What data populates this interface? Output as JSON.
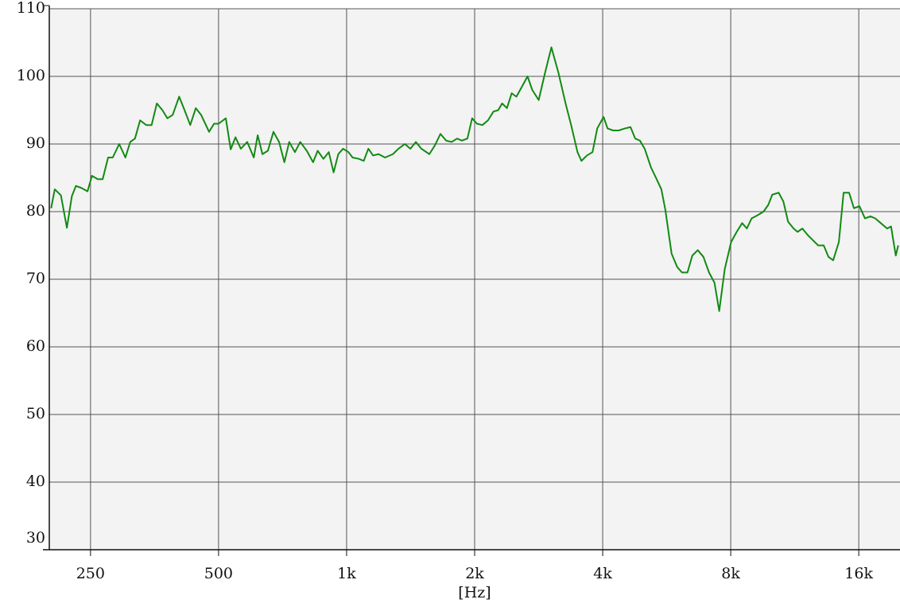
{
  "chart_data": {
    "type": "line",
    "x_label": "[Hz]",
    "log_x": true,
    "grid": true,
    "xlim": [
      200,
      20000
    ],
    "xticks": [
      250,
      500,
      {
        "value": 1000,
        "label": "1k"
      },
      {
        "value": 2000,
        "label": "2k"
      },
      {
        "value": 4000,
        "label": "4k"
      },
      {
        "value": 8000,
        "label": "8k"
      },
      {
        "value": 16000,
        "label": "16k"
      }
    ],
    "ylim": [
      30,
      110
    ],
    "yticks": [
      30,
      40,
      50,
      60,
      70,
      80,
      90,
      100,
      110
    ],
    "series": [
      {
        "color": "#128a12",
        "x": [
          202,
          206,
          213,
          220,
          226,
          231,
          238,
          246,
          252,
          260,
          267,
          275,
          282,
          292,
          302,
          310,
          318,
          327,
          338,
          348,
          358,
          369,
          379,
          390,
          404,
          416,
          429,
          442,
          455,
          475,
          488,
          500,
          520,
          534,
          548,
          564,
          584,
          605,
          618,
          634,
          653,
          673,
          694,
          714,
          733,
          756,
          778,
          806,
          834,
          855,
          882,
          908,
          932,
          956,
          981,
          1010,
          1033,
          1069,
          1097,
          1125,
          1154,
          1189,
          1231,
          1285,
          1324,
          1371,
          1412,
          1455,
          1499,
          1565,
          1613,
          1662,
          1714,
          1766,
          1819,
          1866,
          1923,
          1973,
          2025,
          2086,
          2150,
          2215,
          2272,
          2321,
          2382,
          2444,
          2507,
          2585,
          2663,
          2732,
          2829,
          2927,
          3030,
          3149,
          3272,
          3372,
          3490,
          3565,
          3673,
          3786,
          3884,
          4019,
          4107,
          4231,
          4362,
          4513,
          4650,
          4771,
          4894,
          5021,
          5198,
          5356,
          5495,
          5614,
          5808,
          5988,
          6144,
          6330,
          6497,
          6693,
          6901,
          7113,
          7325,
          7517,
          7745,
          8016,
          8261,
          8510,
          8730,
          8957,
          9273,
          9554,
          9803,
          10015,
          10370,
          10637,
          10914,
          11244,
          11489,
          11788,
          12150,
          12466,
          12845,
          13234,
          13581,
          13930,
          14364,
          14738,
          15183,
          15584,
          16058,
          16545,
          17045,
          17488,
          18024,
          18652,
          19055,
          19548,
          19810
        ],
        "values": [
          80.5,
          83.3,
          82.4,
          77.6,
          82.3,
          83.8,
          83.5,
          83.0,
          85.3,
          84.8,
          84.8,
          88.0,
          88.0,
          90.0,
          88.0,
          90.3,
          90.8,
          93.5,
          92.8,
          92.8,
          96.0,
          95.0,
          93.8,
          94.3,
          97.0,
          95.0,
          92.8,
          95.3,
          94.3,
          91.8,
          93.0,
          93.0,
          93.8,
          89.2,
          91.0,
          89.3,
          90.3,
          88.0,
          91.3,
          88.5,
          89.0,
          91.8,
          90.3,
          87.3,
          90.3,
          88.8,
          90.3,
          89.0,
          87.3,
          89.0,
          87.8,
          88.8,
          85.8,
          88.5,
          89.3,
          88.8,
          88.0,
          87.8,
          87.5,
          89.3,
          88.3,
          88.5,
          88.0,
          88.5,
          89.3,
          90.0,
          89.3,
          90.3,
          89.3,
          88.5,
          89.8,
          91.5,
          90.5,
          90.3,
          90.8,
          90.5,
          90.8,
          93.8,
          93.0,
          92.8,
          93.5,
          94.8,
          95.0,
          96.0,
          95.3,
          97.5,
          97.0,
          98.5,
          100.0,
          98.0,
          96.5,
          100.5,
          104.3,
          100.5,
          96.0,
          92.8,
          88.8,
          87.5,
          88.3,
          88.8,
          92.3,
          94.0,
          92.3,
          92.0,
          92.0,
          92.3,
          92.5,
          90.8,
          90.5,
          89.3,
          86.5,
          84.8,
          83.3,
          80.3,
          73.8,
          71.8,
          71.0,
          71.0,
          73.5,
          74.3,
          73.3,
          71.0,
          69.5,
          65.3,
          71.5,
          75.5,
          77.0,
          78.3,
          77.5,
          79.0,
          79.5,
          80.0,
          81.0,
          82.5,
          82.8,
          81.5,
          78.5,
          77.5,
          77.0,
          77.5,
          76.5,
          75.8,
          75.0,
          75.0,
          73.3,
          72.8,
          75.5,
          82.8,
          82.8,
          80.5,
          80.8,
          79.0,
          79.3,
          79.0,
          78.3,
          77.5,
          77.8,
          73.5,
          75.0
        ]
      }
    ]
  }
}
